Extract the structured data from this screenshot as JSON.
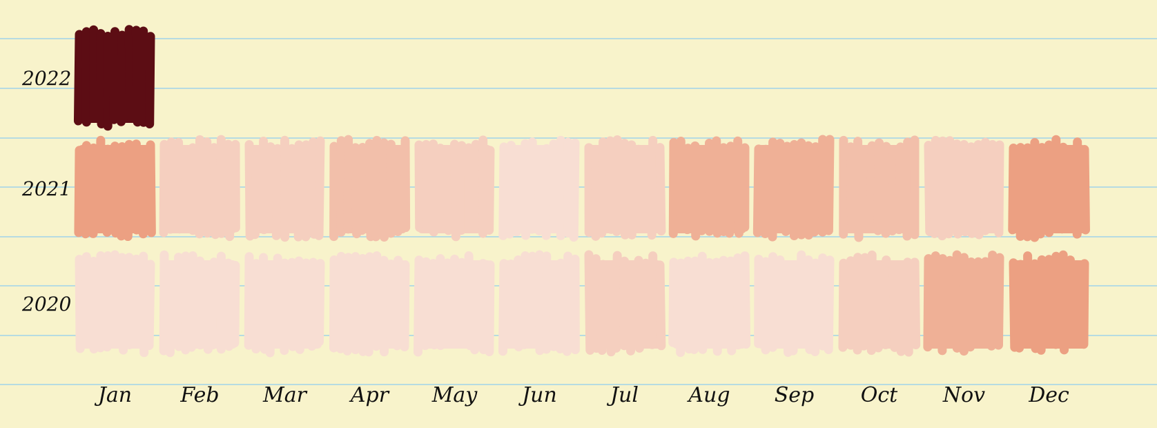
{
  "colors": {
    "paper": "#f8f3cb",
    "rule_lines": "#9fd3ea",
    "label_ink": "#111111",
    "scale_low": "#fbeee7",
    "scale_high": "#5c0d14"
  },
  "chart_data": {
    "type": "heatmap",
    "title": "",
    "xlabel": "",
    "ylabel": "",
    "x_categories": [
      "Jan",
      "Feb",
      "Mar",
      "Apr",
      "May",
      "Jun",
      "Jul",
      "Aug",
      "Sep",
      "Oct",
      "Nov",
      "Dec"
    ],
    "y_categories": [
      "2022",
      "2021",
      "2020"
    ],
    "values": [
      [
        10,
        null,
        null,
        null,
        null,
        null,
        null,
        null,
        null,
        null,
        null,
        null
      ],
      [
        5,
        2,
        2,
        3,
        2,
        1,
        2,
        4,
        4,
        3,
        2,
        5
      ],
      [
        1,
        1,
        1,
        1,
        1,
        1,
        2,
        1,
        1,
        2,
        4,
        5
      ]
    ],
    "value_range": [
      0,
      10
    ],
    "grid": false,
    "legend": "none"
  }
}
